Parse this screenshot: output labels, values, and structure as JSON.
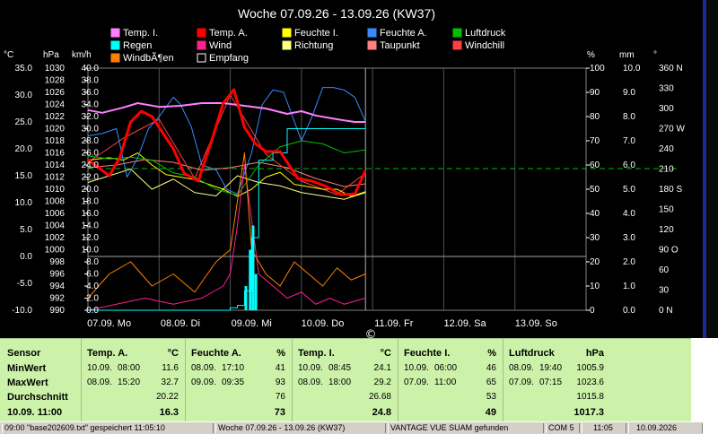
{
  "chart": {
    "title": "Woche 07.09.26 - 13.09.26 (KW37)",
    "legend": [
      {
        "label": "Temp. I.",
        "color": "#ff80ff"
      },
      {
        "label": "Temp. A.",
        "color": "#ff0000"
      },
      {
        "label": "Feuchte I.",
        "color": "#ffff00"
      },
      {
        "label": "Feuchte A.",
        "color": "#3a8aff"
      },
      {
        "label": "Luftdruck",
        "color": "#00c000"
      },
      {
        "label": "Regen",
        "color": "#00ffff"
      },
      {
        "label": "Wind",
        "color": "#ff2090"
      },
      {
        "label": "Richtung",
        "color": "#ffff80"
      },
      {
        "label": "Taupunkt",
        "color": "#ff8080"
      },
      {
        "label": "Windchill",
        "color": "#ff4040"
      },
      {
        "label": "WindbÃ¶en",
        "color": "#ff8000"
      },
      {
        "label": "Empfang",
        "color": "#000000"
      }
    ],
    "units_left": [
      "°C",
      "hPa",
      "km/h"
    ],
    "units_right": [
      "%",
      "mm",
      "°"
    ],
    "axis_celsius": [
      "35.0",
      "30.0",
      "25.0",
      "20.0",
      "15.0",
      "10.0",
      "5.0",
      "0.0",
      "-5.0",
      "-10.0"
    ],
    "axis_hpa": [
      "1030",
      "1028",
      "1026",
      "1024",
      "1022",
      "1020",
      "1018",
      "1016",
      "1014",
      "1012",
      "1010",
      "1008",
      "1006",
      "1004",
      "1002",
      "1000",
      "998",
      "996",
      "994",
      "992",
      "990"
    ],
    "axis_kmh": [
      "40.0",
      "38.0",
      "36.0",
      "34.0",
      "32.0",
      "30.0",
      "28.0",
      "26.0",
      "24.0",
      "22.0",
      "20.0",
      "18.0",
      "16.0",
      "14.0",
      "12.0",
      "10.0",
      "8.0",
      "6.0",
      "4.0",
      "2.0",
      "0.0"
    ],
    "axis_percent": [
      "100",
      "90",
      "80",
      "70",
      "60",
      "50",
      "40",
      "30",
      "20",
      "10",
      "0"
    ],
    "axis_mm": [
      "10.0",
      "9.0",
      "8.0",
      "7.0",
      "6.0",
      "5.0",
      "4.0",
      "3.0",
      "2.0",
      "1.0",
      "0.0"
    ],
    "axis_degree": [
      "360 N",
      "330",
      "300",
      "270 W",
      "240",
      "210",
      "180 S",
      "150",
      "120",
      "90  O",
      "60",
      "30",
      "0   N"
    ],
    "days": [
      "07.09. Mo",
      "08.09. Di",
      "09.09. Mi",
      "10.09. Do",
      "11.09. Fr",
      "12.09. Sa",
      "13.09. So"
    ],
    "cursor_symbol": "©"
  },
  "chart_data": {
    "type": "line",
    "title": "Woche 07.09.26 - 13.09.26 (KW37)",
    "x_unit": "Tage seit 07.09. 00:00",
    "xlim": [
      0,
      7
    ],
    "series": [
      {
        "name": "Temp. I.",
        "axis": "°C",
        "color": "#ff80ff",
        "x": [
          0,
          0.2,
          0.5,
          0.7,
          1.0,
          1.3,
          1.6,
          1.9,
          2.2,
          2.5,
          2.8,
          3.0,
          3.2,
          3.5,
          3.75,
          3.9
        ],
        "y": [
          27.2,
          26.7,
          27.7,
          28.5,
          27.8,
          28.0,
          28.5,
          28.5,
          28.0,
          27.5,
          26.5,
          27.0,
          26.2,
          25.5,
          25.0,
          25.0
        ]
      },
      {
        "name": "Temp. A.",
        "axis": "°C",
        "color": "#ff0000",
        "x": [
          0,
          0.15,
          0.3,
          0.45,
          0.6,
          0.75,
          0.9,
          1.05,
          1.2,
          1.35,
          1.55,
          1.75,
          1.9,
          2.05,
          2.2,
          2.35,
          2.5,
          2.7,
          2.95,
          3.15,
          3.35,
          3.55,
          3.75,
          3.9
        ],
        "y": [
          18.0,
          16.5,
          15.0,
          18.5,
          25.0,
          27.0,
          26.0,
          23.0,
          20.0,
          15.5,
          14.0,
          22.0,
          28.5,
          31.0,
          24.0,
          21.0,
          19.5,
          19.5,
          14.5,
          14.0,
          13.0,
          11.5,
          11.6,
          16.0
        ]
      },
      {
        "name": "Feuchte A.",
        "axis": "%",
        "color": "#3a8aff",
        "x": [
          0,
          0.2,
          0.4,
          0.55,
          0.7,
          0.85,
          1.0,
          1.2,
          1.3,
          1.45,
          1.6,
          1.8,
          1.95,
          2.1,
          2.3,
          2.45,
          2.6,
          2.75,
          2.9,
          3.0,
          3.15,
          3.3,
          3.45,
          3.6,
          3.75,
          3.9
        ],
        "y": [
          72,
          73,
          75,
          55,
          63,
          75,
          80,
          88,
          85,
          76,
          60,
          58,
          50,
          48,
          65,
          85,
          91,
          90,
          78,
          70,
          80,
          92,
          92,
          91,
          88,
          78
        ]
      },
      {
        "name": "Feuchte I.",
        "axis": "%",
        "color": "#ffff00",
        "x": [
          0,
          0.3,
          0.5,
          0.7,
          0.9,
          1.1,
          1.3,
          1.5,
          1.7,
          1.9,
          2.1,
          2.3,
          2.5,
          2.7,
          2.9,
          3.1,
          3.3,
          3.5,
          3.7,
          3.9
        ],
        "y": [
          62,
          63,
          62,
          65,
          60,
          56,
          55,
          54,
          52,
          50,
          47,
          50,
          55,
          57,
          52,
          51,
          50,
          50,
          47,
          49
        ]
      },
      {
        "name": "Luftdruck",
        "axis": "hPa",
        "color": "#00c000",
        "x": [
          0,
          0.3,
          0.6,
          0.9,
          1.2,
          1.5,
          1.8,
          2.1,
          2.4,
          2.7,
          3.0,
          3.3,
          3.6,
          3.9
        ],
        "y": [
          1015.5,
          1015.0,
          1015.3,
          1014.8,
          1012.7,
          1012.0,
          1010.0,
          1009.0,
          1014.0,
          1017.0,
          1018.0,
          1017.5,
          1016.0,
          1016.5
        ]
      },
      {
        "name": "Regen",
        "axis": "mm",
        "color": "#00ffff",
        "x": [
          0,
          1.8,
          2.0,
          2.1,
          2.2,
          2.3,
          2.4,
          2.6,
          2.8,
          3.0,
          3.3,
          3.6,
          3.9
        ],
        "y": [
          0.0,
          0.0,
          0.1,
          0.2,
          0.8,
          3.0,
          6.2,
          6.5,
          7.5,
          7.5,
          7.5,
          7.5,
          7.5
        ]
      },
      {
        "name": "Wind",
        "axis": "km/h",
        "color": "#ff2090",
        "x": [
          0,
          0.4,
          0.8,
          1.2,
          1.6,
          1.9,
          2.0,
          2.1,
          2.2,
          2.4,
          2.6,
          2.8,
          3.0,
          3.2,
          3.4,
          3.6,
          3.9
        ],
        "y": [
          0,
          1,
          2,
          1,
          2,
          4,
          6,
          14,
          24,
          6,
          4,
          2,
          3,
          1,
          2,
          1,
          2
        ]
      },
      {
        "name": "WindbÃ¶en",
        "axis": "km/h",
        "color": "#ff8000",
        "x": [
          0,
          0.3,
          0.6,
          0.9,
          1.2,
          1.5,
          1.8,
          2.0,
          2.1,
          2.2,
          2.3,
          2.5,
          2.7,
          2.9,
          3.1,
          3.3,
          3.5,
          3.7,
          3.9
        ],
        "y": [
          2,
          6,
          8,
          4,
          6,
          3,
          8,
          10,
          18,
          26,
          10,
          6,
          4,
          8,
          6,
          4,
          7,
          5,
          6
        ]
      },
      {
        "name": "Taupunkt",
        "axis": "°C",
        "color": "#ff8080",
        "x": [
          0,
          0.4,
          0.8,
          1.2,
          1.6,
          2.0,
          2.4,
          2.8,
          3.2,
          3.6,
          3.9
        ],
        "y": [
          16.5,
          17.0,
          18.0,
          17.5,
          16.0,
          16.5,
          17.5,
          16.5,
          14.5,
          13.0,
          13.5
        ]
      },
      {
        "name": "Windchill",
        "axis": "°C",
        "color": "#ff4040",
        "x": [
          0,
          0.5,
          1.0,
          1.5,
          2.0,
          2.5,
          3.0,
          3.5,
          3.9
        ],
        "y": [
          17.5,
          22.0,
          25.5,
          14.5,
          30.0,
          19.0,
          14.0,
          11.5,
          15.5
        ]
      },
      {
        "name": "Richtung",
        "axis": "°",
        "color": "#ffff80",
        "x": [
          0,
          0.3,
          0.6,
          0.9,
          1.2,
          1.5,
          1.8,
          2.1,
          2.4,
          2.7,
          3.0,
          3.3,
          3.6,
          3.9
        ],
        "y": [
          190,
          200,
          210,
          180,
          195,
          175,
          170,
          200,
          190,
          185,
          175,
          170,
          165,
          175
        ]
      }
    ],
    "gridlines": true
  },
  "stats": {
    "labels": {
      "sensor": "Sensor",
      "min": "MinWert",
      "max": "MaxWert",
      "avg": "Durchschnitt",
      "current": "10.09. 11:00"
    },
    "columns": [
      {
        "name": "Temp. A.",
        "unit": "°C",
        "min_date": "10.09.",
        "min_time": "08:00",
        "min": "11.6",
        "max_date": "08.09.",
        "max_time": "15:20",
        "max": "32.7",
        "avg": "20.22",
        "current": "16.3"
      },
      {
        "name": "Feuchte A.",
        "unit": "%",
        "min_date": "08.09.",
        "min_time": "17:10",
        "min": "41",
        "max_date": "09.09.",
        "max_time": "09:35",
        "max": "93",
        "avg": "76",
        "current": "73"
      },
      {
        "name": "Temp. I.",
        "unit": "°C",
        "min_date": "10.09.",
        "min_time": "08:45",
        "min": "24.1",
        "max_date": "08.09.",
        "max_time": "18:00",
        "max": "29.2",
        "avg": "26.68",
        "current": "24.8"
      },
      {
        "name": "Feuchte I.",
        "unit": "%",
        "min_date": "10.09.",
        "min_time": "06:00",
        "min": "46",
        "max_date": "07.09.",
        "max_time": "11:00",
        "max": "65",
        "avg": "53",
        "current": "49"
      },
      {
        "name": "Luftdruck",
        "unit": "hPa",
        "min_date": "08.09.",
        "min_time": "19:40",
        "min": "1005.9",
        "max_date": "07.09.",
        "max_time": "07:15",
        "max": "1023.6",
        "avg": "1015.8",
        "current": "1017.3"
      }
    ]
  },
  "statusbar": {
    "seg1": "09:00  \"base202609.txt\" gespeichert  11:05:10",
    "seg2": "Woche 07.09.26 - 13.09.26 (KW37)",
    "seg3": "VANTAGE VUE SUAM gefunden",
    "seg4": "COM 5",
    "seg5": "11:05",
    "seg6": "10.09.2026"
  }
}
